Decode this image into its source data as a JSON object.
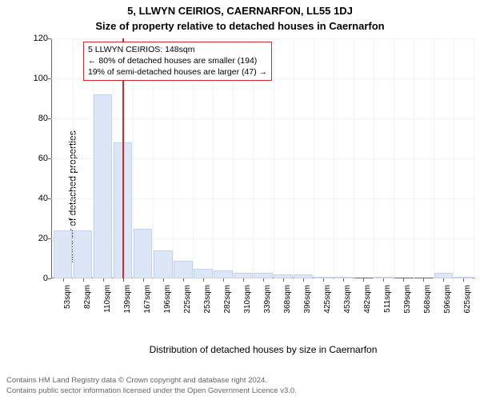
{
  "header": {
    "address": "5, LLWYN CEIRIOS, CAERNARFON, LL55 1DJ",
    "subtitle": "Size of property relative to detached houses in Caernarfon"
  },
  "chart": {
    "type": "histogram",
    "ylabel": "Number of detached properties",
    "xlabel": "Distribution of detached houses by size in Caernarfon",
    "ylim": [
      0,
      120
    ],
    "ytick_step": 20,
    "yticks": [
      0,
      20,
      40,
      60,
      80,
      100,
      120
    ],
    "x_tick_labels": [
      "53sqm",
      "82sqm",
      "110sqm",
      "139sqm",
      "167sqm",
      "196sqm",
      "225sqm",
      "253sqm",
      "282sqm",
      "310sqm",
      "339sqm",
      "368sqm",
      "396sqm",
      "425sqm",
      "453sqm",
      "482sqm",
      "511sqm",
      "539sqm",
      "568sqm",
      "596sqm",
      "625sqm"
    ],
    "bar_values": [
      24,
      24,
      92,
      68,
      25,
      14,
      9,
      5,
      4,
      3,
      3,
      2,
      2,
      1,
      1,
      0,
      1,
      0,
      0,
      3,
      1
    ],
    "bar_fill": "#dde6f6",
    "bar_stroke": "#c3d2ef",
    "background_color": "#ffffff",
    "grid_color": "#f2f3f6",
    "axis_color": "#666666",
    "marker": {
      "x_value_sqm": 148,
      "x_range_sqm": [
        53,
        625
      ],
      "color": "#d02a2a"
    },
    "annotation": {
      "border_color": "#d02a2a",
      "line1": "5 LLWYN CEIRIOS: 148sqm",
      "line2": "← 80% of detached houses are smaller (194)",
      "line3": "19% of semi-detached houses are larger (47) →"
    }
  },
  "footer": {
    "line1": "Contains HM Land Registry data © Crown copyright and database right 2024.",
    "line2": "Contains public sector information licensed under the Open Government Licence v3.0."
  }
}
